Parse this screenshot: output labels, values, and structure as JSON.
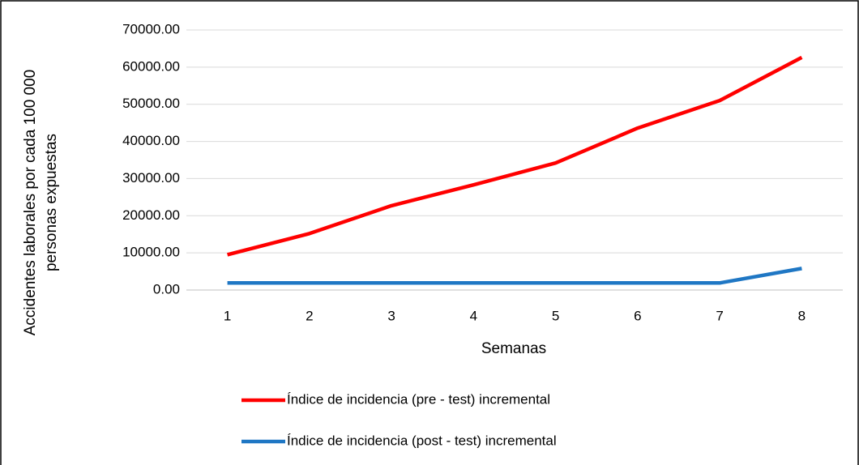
{
  "chart_data": {
    "type": "line",
    "ylabel": [
      "Accidentes laborales por cada 100 000",
      "personas expuestas"
    ],
    "xlabel": "Semanas",
    "categories": [
      "1",
      "2",
      "3",
      "4",
      "5",
      "6",
      "7",
      "8"
    ],
    "series": [
      {
        "name": "Índice de incidencia (pre - test) incremental",
        "color": "#ff0000",
        "values": [
          9500,
          15200,
          22700,
          28300,
          34200,
          43600,
          51000,
          62600
        ]
      },
      {
        "name": "Índice de incidencia (post - test) incremental",
        "color": "#1f77c4",
        "values": [
          1900,
          1900,
          1900,
          1900,
          1900,
          1900,
          1900,
          5800
        ]
      }
    ],
    "ylim": [
      0,
      70000
    ],
    "yticks": [
      {
        "value": 0,
        "label": "0.00"
      },
      {
        "value": 10000,
        "label": "10000.00"
      },
      {
        "value": 20000,
        "label": "20000.00"
      },
      {
        "value": 30000,
        "label": "30000.00"
      },
      {
        "value": 40000,
        "label": "40000.00"
      },
      {
        "value": 50000,
        "label": "50000.00"
      },
      {
        "value": 60000,
        "label": "60000.00"
      },
      {
        "value": 70000,
        "label": "70000.00"
      }
    ],
    "grid": true,
    "legend": "bottom"
  }
}
